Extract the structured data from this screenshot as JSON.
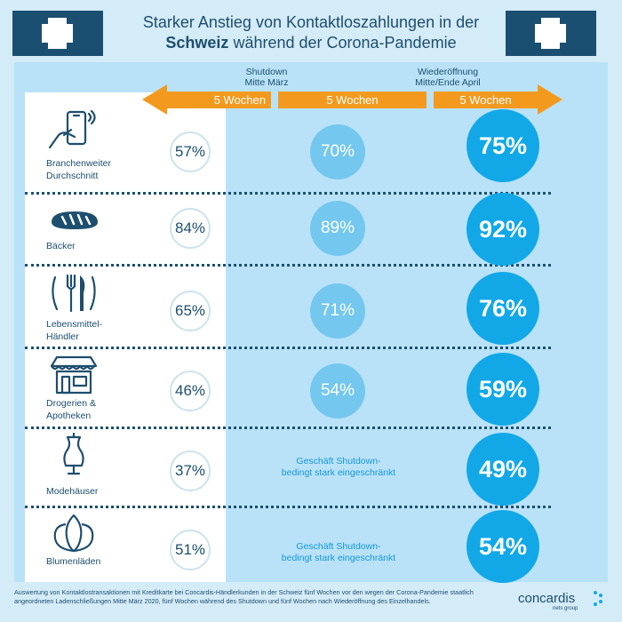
{
  "header": {
    "title_line1": "Starker Anstieg von Kontaktloszahlungen in der",
    "title_bold": "Schweiz",
    "title_line2_rest": " während der Corona-Pandemie"
  },
  "phases": {
    "shutdown_title": "Shutdown",
    "shutdown_sub": "Mitte März",
    "reopening_title": "Wiederöffnung",
    "reopening_sub": "Mitte/Ende April"
  },
  "timeline": {
    "segment1": "5 Wochen",
    "segment2": "5 Wochen",
    "segment3": "5 Wochen"
  },
  "chart_data": {
    "type": "table",
    "title": "Starker Anstieg von Kontaktloszahlungen in der Schweiz während der Corona-Pandemie",
    "columns": [
      "5 Wochen",
      "5 Wochen",
      "5 Wochen"
    ],
    "categories": [
      "Branchenweiter Durchschnitt",
      "Bäcker",
      "Lebensmittel-Händler",
      "Drogerien & Apotheken",
      "Modehäuser",
      "Blumenläden"
    ],
    "series": [
      {
        "values": [
          57,
          84,
          65,
          46,
          37,
          51
        ]
      },
      {
        "values": [
          70,
          89,
          71,
          54,
          null,
          null
        ]
      },
      {
        "values": [
          75,
          92,
          76,
          59,
          49,
          54
        ]
      }
    ]
  },
  "rows": [
    {
      "label1": "Branchenweiter",
      "label2": "Durchschnitt",
      "before": "57%",
      "during": "70%",
      "after": "75%",
      "note1": "",
      "note2": ""
    },
    {
      "label1": "Bäcker",
      "label2": "",
      "before": "84%",
      "during": "89%",
      "after": "92%",
      "note1": "",
      "note2": ""
    },
    {
      "label1": "Lebensmittel-",
      "label2": "Händler",
      "before": "65%",
      "during": "71%",
      "after": "76%",
      "note1": "",
      "note2": ""
    },
    {
      "label1": "Drogerien &",
      "label2": "Apotheken",
      "before": "46%",
      "during": "54%",
      "after": "59%",
      "note1": "",
      "note2": ""
    },
    {
      "label1": "Modehäuser",
      "label2": "",
      "before": "37%",
      "during": "",
      "after": "49%",
      "note1": "Geschäft Shutdown-",
      "note2": "bedingt stark eingeschränkt"
    },
    {
      "label1": "Blumenläden",
      "label2": "",
      "before": "51%",
      "during": "",
      "after": "54%",
      "note1": "Geschäft Shutdown-",
      "note2": "bedingt stark eingeschränkt"
    }
  ],
  "icons": [
    "smartphone-tap-icon",
    "bread-icon",
    "fork-knife-icon",
    "shop-icon",
    "dress-form-icon",
    "tulip-icon"
  ],
  "footer": {
    "text": "Auswertung von Kontaktlostransaktionen mit Kreditkarte bei Concardis-Händlerkunden in der Schweiz fünf Wochen vor den wegen der Corona-Pandemie staatlich angeordneten Ladenschließungen Mitte März 2020, fünf Wochen während des Shutdown und fünf Wochen nach Wiederöffnung des Einzelhandels."
  },
  "logo": {
    "name": "concardis",
    "sub": "nets group"
  },
  "colors": {
    "navy": "#1b4f72",
    "orange": "#f39a1e",
    "light_blue": "#74c7ef",
    "bright_blue": "#12a8e8",
    "panel": "#b9e2f8",
    "background": "#d4ebf8"
  }
}
